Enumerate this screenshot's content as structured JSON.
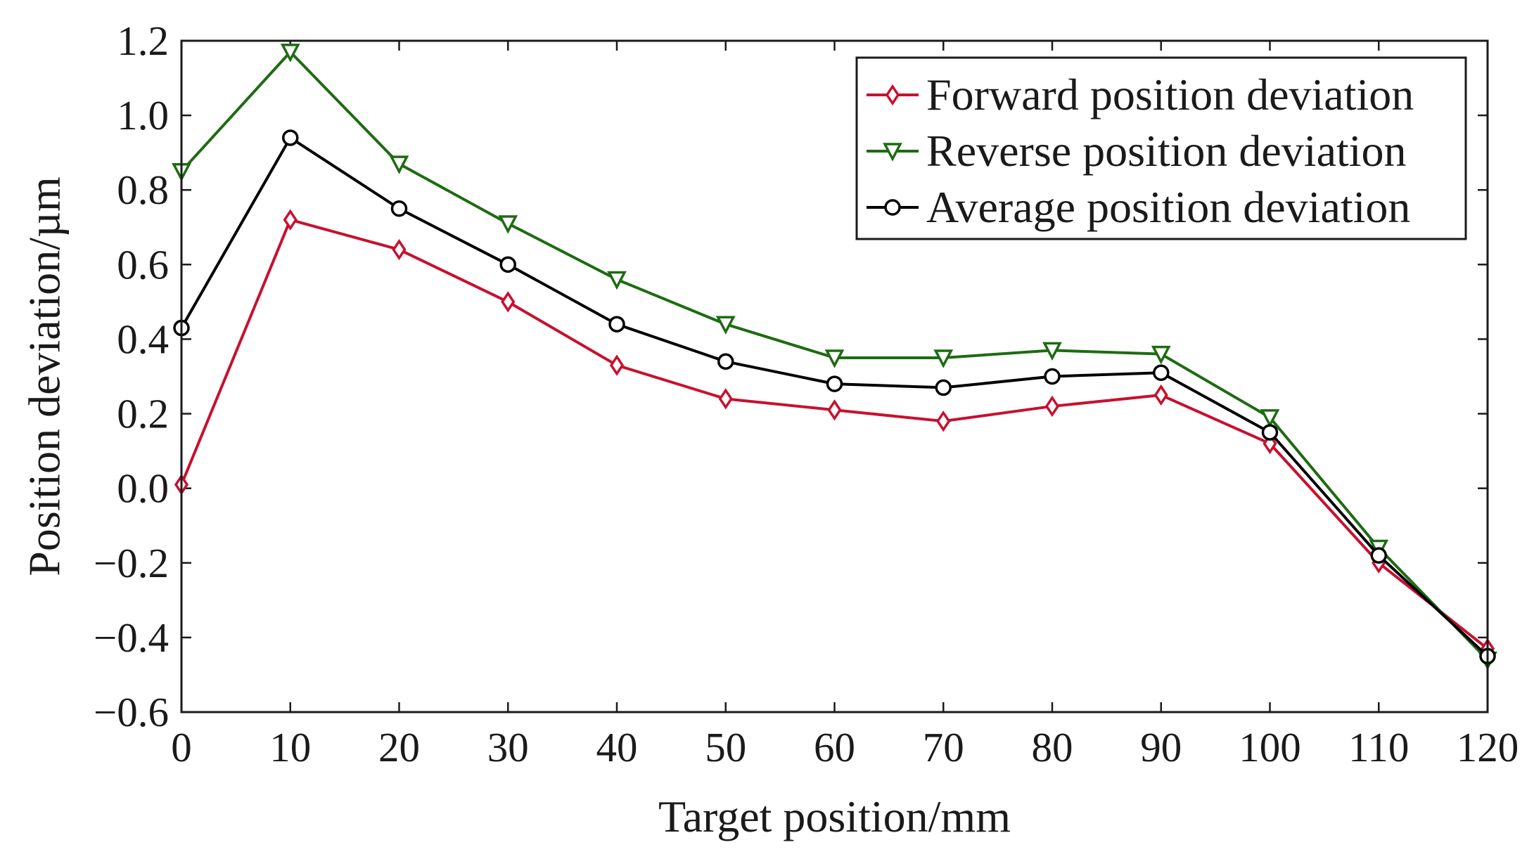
{
  "chart_data": {
    "type": "line",
    "title": "",
    "xlabel": "Target position/mm",
    "ylabel": "Position deviation/µm",
    "x": [
      0,
      10,
      20,
      30,
      40,
      50,
      60,
      70,
      80,
      90,
      100,
      110,
      120
    ],
    "xlim": [
      0,
      120
    ],
    "ylim": [
      -0.6,
      1.2
    ],
    "xticks": [
      0,
      10,
      20,
      30,
      40,
      50,
      60,
      70,
      80,
      90,
      100,
      110,
      120
    ],
    "xtick_labels": [
      "0",
      "10",
      "20",
      "30",
      "40",
      "50",
      "60",
      "70",
      "80",
      "90",
      "100",
      "110",
      "120"
    ],
    "yticks": [
      -0.6,
      -0.4,
      -0.2,
      0.0,
      0.2,
      0.4,
      0.6,
      0.8,
      1.0,
      1.2
    ],
    "ytick_labels": [
      "−0.6",
      "−0.4",
      "−0.2",
      "0.0",
      "0.2",
      "0.4",
      "0.6",
      "0.8",
      "1.0",
      "1.2"
    ],
    "grid": false,
    "legend_position": "top-right",
    "series": [
      {
        "name": "Forward position deviation",
        "color": "#c8102e",
        "marker": "diamond",
        "values": [
          0.01,
          0.72,
          0.64,
          0.5,
          0.33,
          0.24,
          0.21,
          0.18,
          0.22,
          0.25,
          0.12,
          -0.2,
          -0.43
        ]
      },
      {
        "name": "Reverse position deviation",
        "color": "#1e6b12",
        "marker": "triangle-down",
        "values": [
          0.85,
          1.17,
          0.87,
          0.71,
          0.56,
          0.44,
          0.35,
          0.35,
          0.37,
          0.36,
          0.19,
          -0.16,
          -0.46
        ]
      },
      {
        "name": "Average position deviation",
        "color": "#000000",
        "marker": "circle",
        "values": [
          0.43,
          0.94,
          0.75,
          0.6,
          0.44,
          0.34,
          0.28,
          0.27,
          0.3,
          0.31,
          0.15,
          -0.18,
          -0.45
        ]
      }
    ]
  }
}
